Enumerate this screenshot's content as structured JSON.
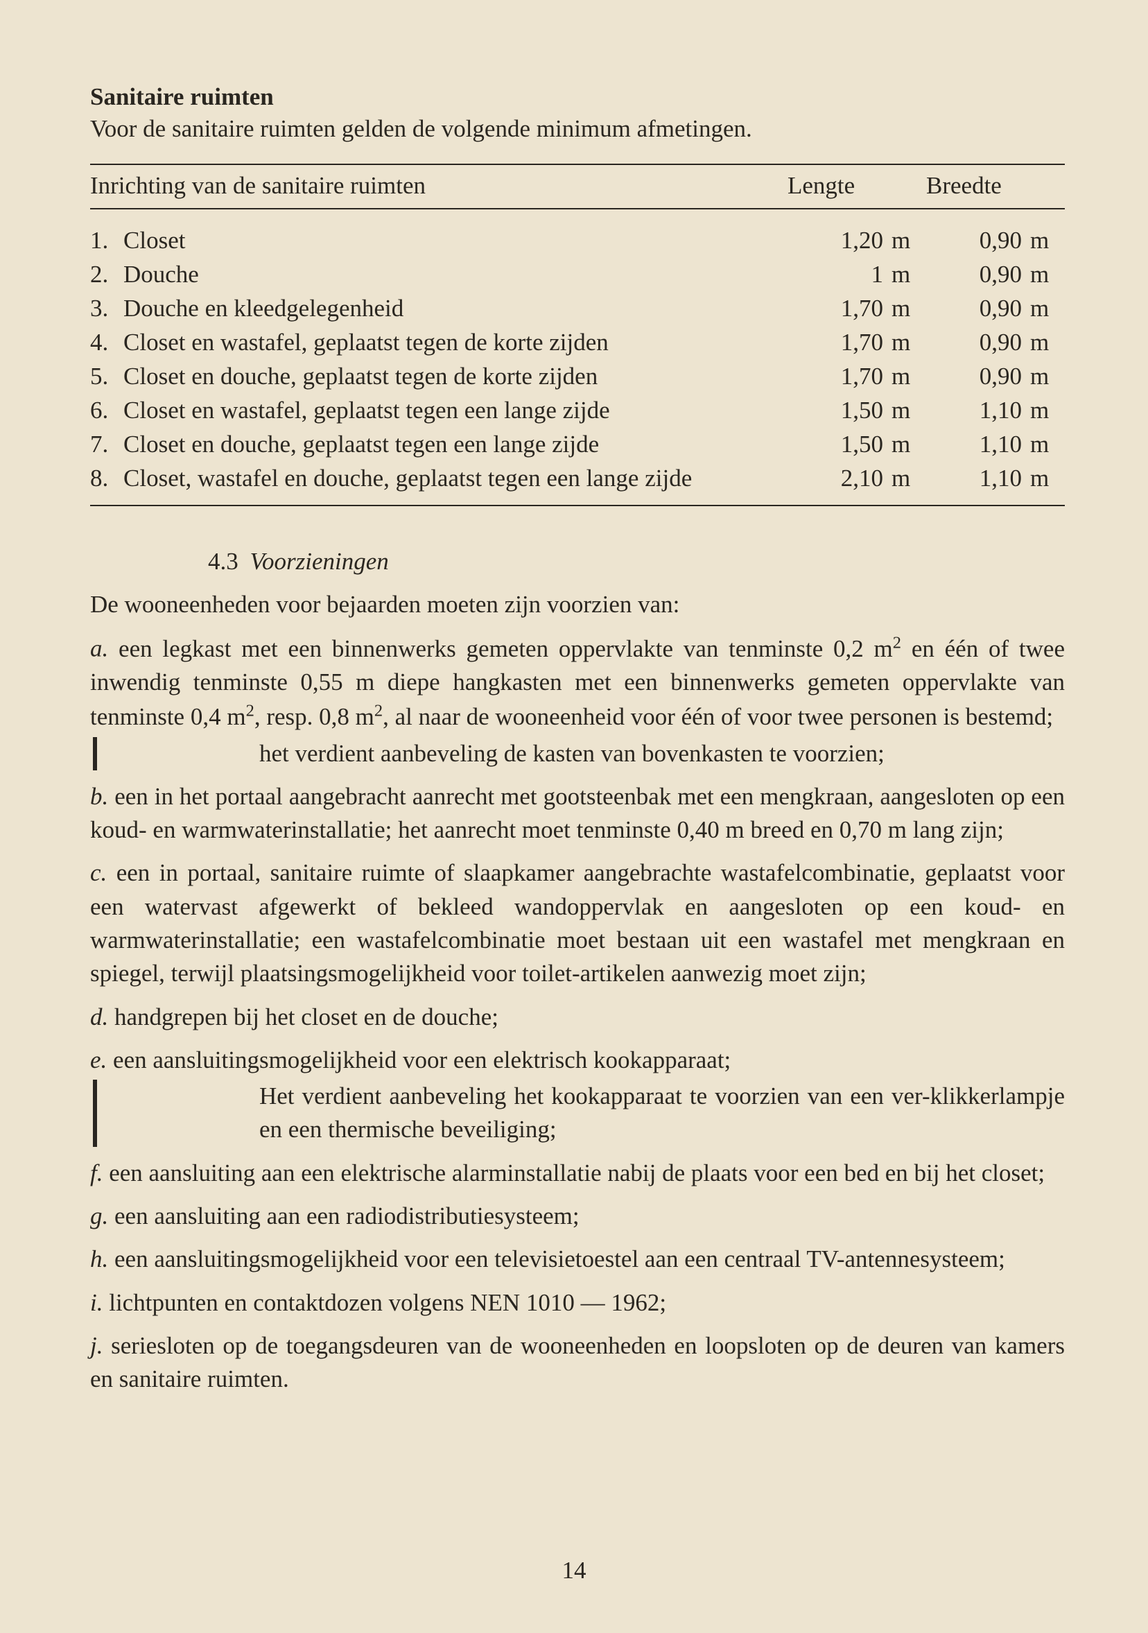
{
  "heading": "Sanitaire ruimten",
  "intro": "Voor de sanitaire ruimten gelden de volgende minimum afmetingen.",
  "table": {
    "header_name": "Inrichting van de sanitaire ruimten",
    "header_len": "Lengte",
    "header_wid": "Breedte",
    "rows": [
      {
        "num": "1.",
        "label": "Closet",
        "len": "1,20",
        "len_unit": "m",
        "wid": "0,90",
        "wid_unit": "m"
      },
      {
        "num": "2.",
        "label": "Douche",
        "len": "1",
        "len_unit": "m",
        "wid": "0,90",
        "wid_unit": "m"
      },
      {
        "num": "3.",
        "label": "Douche en kleedgelegenheid",
        "len": "1,70",
        "len_unit": "m",
        "wid": "0,90",
        "wid_unit": "m"
      },
      {
        "num": "4.",
        "label": "Closet en wastafel, geplaatst tegen de korte zijden",
        "len": "1,70",
        "len_unit": "m",
        "wid": "0,90",
        "wid_unit": "m"
      },
      {
        "num": "5.",
        "label": "Closet en douche, geplaatst tegen de korte zijden",
        "len": "1,70",
        "len_unit": "m",
        "wid": "0,90",
        "wid_unit": "m"
      },
      {
        "num": "6.",
        "label": "Closet en wastafel, geplaatst tegen een lange zijde",
        "len": "1,50",
        "len_unit": "m",
        "wid": "1,10",
        "wid_unit": "m"
      },
      {
        "num": "7.",
        "label": "Closet en douche, geplaatst tegen een lange zijde",
        "len": "1,50",
        "len_unit": "m",
        "wid": "1,10",
        "wid_unit": "m"
      },
      {
        "num": "8.",
        "label": "Closet, wastafel en douche, geplaatst tegen een lange zijde",
        "len": "2,10",
        "len_unit": "m",
        "wid": "1,10",
        "wid_unit": "m"
      }
    ]
  },
  "subhead_num": "4.3",
  "subhead_title": "Voorzieningen",
  "lead": "De wooneenheden voor bejaarden moeten zijn voorzien van:",
  "item_a_letter": "a.",
  "item_a_html": "een legkast met een binnenwerks gemeten oppervlakte van tenminste 0,2 m<sup>2</sup> en één of twee inwendig tenminste 0,55 m diepe hangkasten met een binnenwerks gemeten oppervlakte van tenminste 0,4 m<sup>2</sup>, resp. 0,8 m<sup>2</sup>, al naar de wooneenheid voor één of voor twee personen is bestemd;",
  "note1": "het verdient aanbeveling de kasten van bovenkasten te voorzien;",
  "item_b_letter": "b.",
  "item_b": "een in het portaal aangebracht aanrecht met gootsteenbak met een mengkraan, aangesloten op een koud- en warmwaterinstallatie; het aanrecht moet tenminste 0,40 m breed en 0,70 m lang zijn;",
  "item_c_letter": "c.",
  "item_c": "een in portaal, sanitaire ruimte of slaapkamer aangebrachte wastafelcombinatie, geplaatst voor een watervast afgewerkt of bekleed wandoppervlak en aangesloten op een koud- en warmwaterinstallatie; een wastafelcombinatie moet bestaan uit een wastafel met mengkraan en spiegel, terwijl plaatsingsmogelijkheid voor toilet-artikelen aanwezig moet zijn;",
  "item_d_letter": "d.",
  "item_d": "handgrepen bij het closet en de douche;",
  "item_e_letter": "e.",
  "item_e": "een aansluitingsmogelijkheid voor een elektrisch kookapparaat;",
  "note2": "Het verdient aanbeveling het kookapparaat te voorzien van een ver-klikkerlampje en een thermische beveiliging;",
  "item_f_letter": "f.",
  "item_f": "een aansluiting aan een elektrische alarminstallatie nabij de plaats voor een bed en bij het closet;",
  "item_g_letter": "g.",
  "item_g": "een aansluiting aan een radiodistributiesysteem;",
  "item_h_letter": "h.",
  "item_h": "een aansluitingsmogelijkheid voor een televisietoestel aan een centraal TV-antennesysteem;",
  "item_i_letter": "i.",
  "item_i": "lichtpunten en contaktdozen volgens NEN 1010 — 1962;",
  "item_j_letter": "j.",
  "item_j": "seriesloten op de toegangsdeuren van de wooneenheden en loopsloten op de deuren van kamers en sanitaire ruimten.",
  "pagenum": "14"
}
